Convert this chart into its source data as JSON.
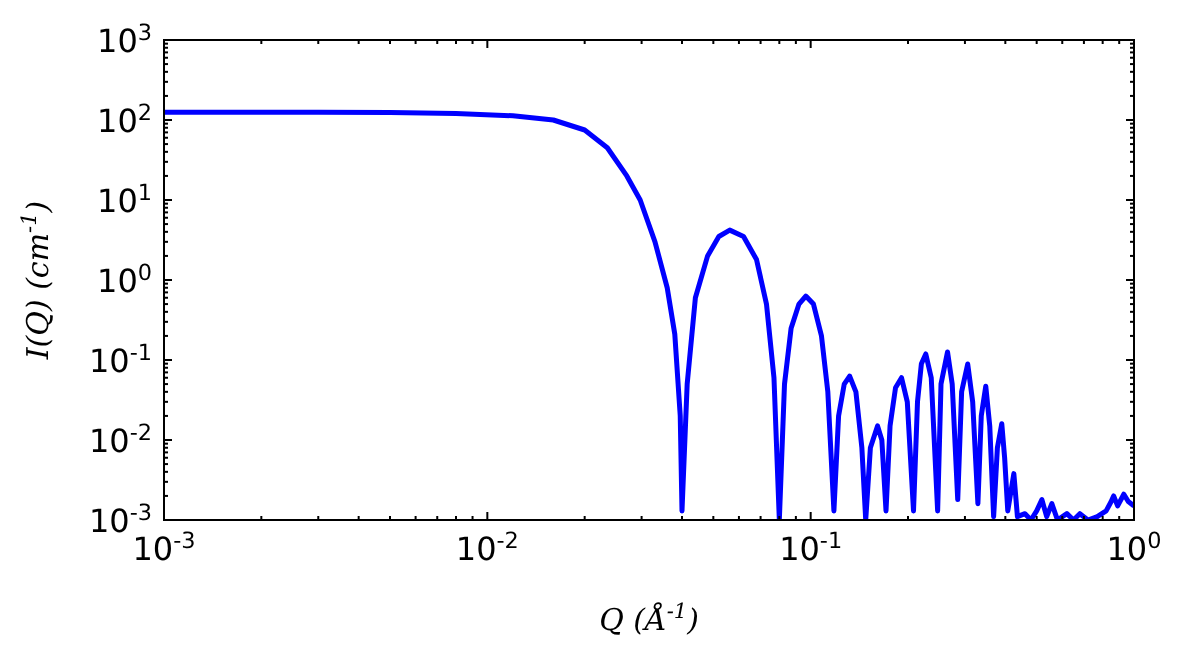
{
  "chart_data": {
    "type": "line",
    "xlabel": "Q (Å$^{-1}$)",
    "ylabel": "I(Q) (cm$^{-1}$)",
    "log": "xy",
    "grid": false,
    "line_style": "solid",
    "xlim": [
      0.001,
      1
    ],
    "ylim": [
      0.001,
      1000
    ],
    "xticks": [
      {
        "value": 0.001,
        "label": "10$^{-3}$"
      },
      {
        "value": 0.002,
        "label": null
      },
      {
        "value": 0.003,
        "label": null
      },
      {
        "value": 0.004,
        "label": null
      },
      {
        "value": 0.005,
        "label": null
      },
      {
        "value": 0.006,
        "label": null
      },
      {
        "value": 0.007,
        "label": null
      },
      {
        "value": 0.008,
        "label": null
      },
      {
        "value": 0.009,
        "label": null
      },
      {
        "value": 0.01,
        "label": "10$^{-2}$"
      },
      {
        "value": 0.02,
        "label": null
      },
      {
        "value": 0.03,
        "label": null
      },
      {
        "value": 0.04,
        "label": null
      },
      {
        "value": 0.05,
        "label": null
      },
      {
        "value": 0.06,
        "label": null
      },
      {
        "value": 0.07,
        "label": null
      },
      {
        "value": 0.08,
        "label": null
      },
      {
        "value": 0.09,
        "label": null
      },
      {
        "value": 0.1,
        "label": "10$^{-1}$"
      },
      {
        "value": 0.2,
        "label": null
      },
      {
        "value": 0.3,
        "label": null
      },
      {
        "value": 0.4,
        "label": null
      },
      {
        "value": 0.5,
        "label": null
      },
      {
        "value": 0.6,
        "label": null
      },
      {
        "value": 0.7,
        "label": null
      },
      {
        "value": 0.8,
        "label": null
      },
      {
        "value": 0.9,
        "label": null
      },
      {
        "value": 1,
        "label": "10$^{0}$"
      }
    ],
    "yticks": [
      {
        "value": 0.001,
        "label": "10$^{-3}$"
      },
      {
        "value": 0.01,
        "label": "10$^{-2}$"
      },
      {
        "value": 0.1,
        "label": "10$^{-1}$"
      },
      {
        "value": 1,
        "label": "10$^{0}$"
      },
      {
        "value": 10,
        "label": "10$^{1}$"
      },
      {
        "value": 100,
        "label": "10$^{2}$"
      },
      {
        "value": 1000,
        "label": "10$^{3}$"
      }
    ],
    "series": [
      {
        "color": "#0000ff",
        "x": [
          0.001,
          0.003,
          0.005,
          0.008,
          0.012,
          0.016,
          0.02,
          0.0235,
          0.027,
          0.0297,
          0.033,
          0.036,
          0.038,
          0.0395,
          0.04,
          0.0415,
          0.044,
          0.048,
          0.052,
          0.0562,
          0.062,
          0.068,
          0.073,
          0.077,
          0.08,
          0.083,
          0.087,
          0.092,
          0.0966,
          0.102,
          0.108,
          0.113,
          0.118,
          0.122,
          0.127,
          0.132,
          0.138,
          0.144,
          0.148,
          0.153,
          0.161,
          0.166,
          0.171,
          0.176,
          0.183,
          0.191,
          0.199,
          0.208,
          0.214,
          0.22,
          0.227,
          0.236,
          0.247,
          0.253,
          0.265,
          0.274,
          0.285,
          0.293,
          0.306,
          0.317,
          0.329,
          0.337,
          0.348,
          0.358,
          0.368,
          0.378,
          0.39,
          0.398,
          0.407,
          0.425,
          0.436,
          0.46,
          0.48,
          0.5,
          0.519,
          0.537,
          0.557,
          0.58,
          0.62,
          0.65,
          0.68,
          0.72,
          0.77,
          0.82,
          0.85,
          0.865,
          0.89,
          0.93,
          0.96,
          1
        ],
        "values": [
          125,
          125,
          124,
          121,
          113,
          100,
          75,
          45,
          20,
          10,
          3,
          0.8,
          0.21,
          0.02,
          0.0013,
          0.05,
          0.6,
          2,
          3.5,
          4.2,
          3.5,
          1.8,
          0.5,
          0.06,
          0.001,
          0.05,
          0.25,
          0.5,
          0.63,
          0.5,
          0.2,
          0.04,
          0.0013,
          0.02,
          0.05,
          0.063,
          0.04,
          0.008,
          0.001,
          0.008,
          0.015,
          0.01,
          0.0013,
          0.015,
          0.045,
          0.06,
          0.03,
          0.0013,
          0.03,
          0.09,
          0.119,
          0.06,
          0.0013,
          0.05,
          0.126,
          0.05,
          0.0018,
          0.04,
          0.089,
          0.03,
          0.0016,
          0.02,
          0.047,
          0.015,
          0.0011,
          0.008,
          0.016,
          0.006,
          0.0013,
          0.0038,
          0.0011,
          0.0012,
          0.001,
          0.0013,
          0.0018,
          0.0011,
          0.0016,
          0.001,
          0.0012,
          0.001,
          0.0012,
          0.001,
          0.0011,
          0.0013,
          0.0017,
          0.002,
          0.0015,
          0.0021,
          0.0017,
          0.0015
        ]
      }
    ]
  }
}
